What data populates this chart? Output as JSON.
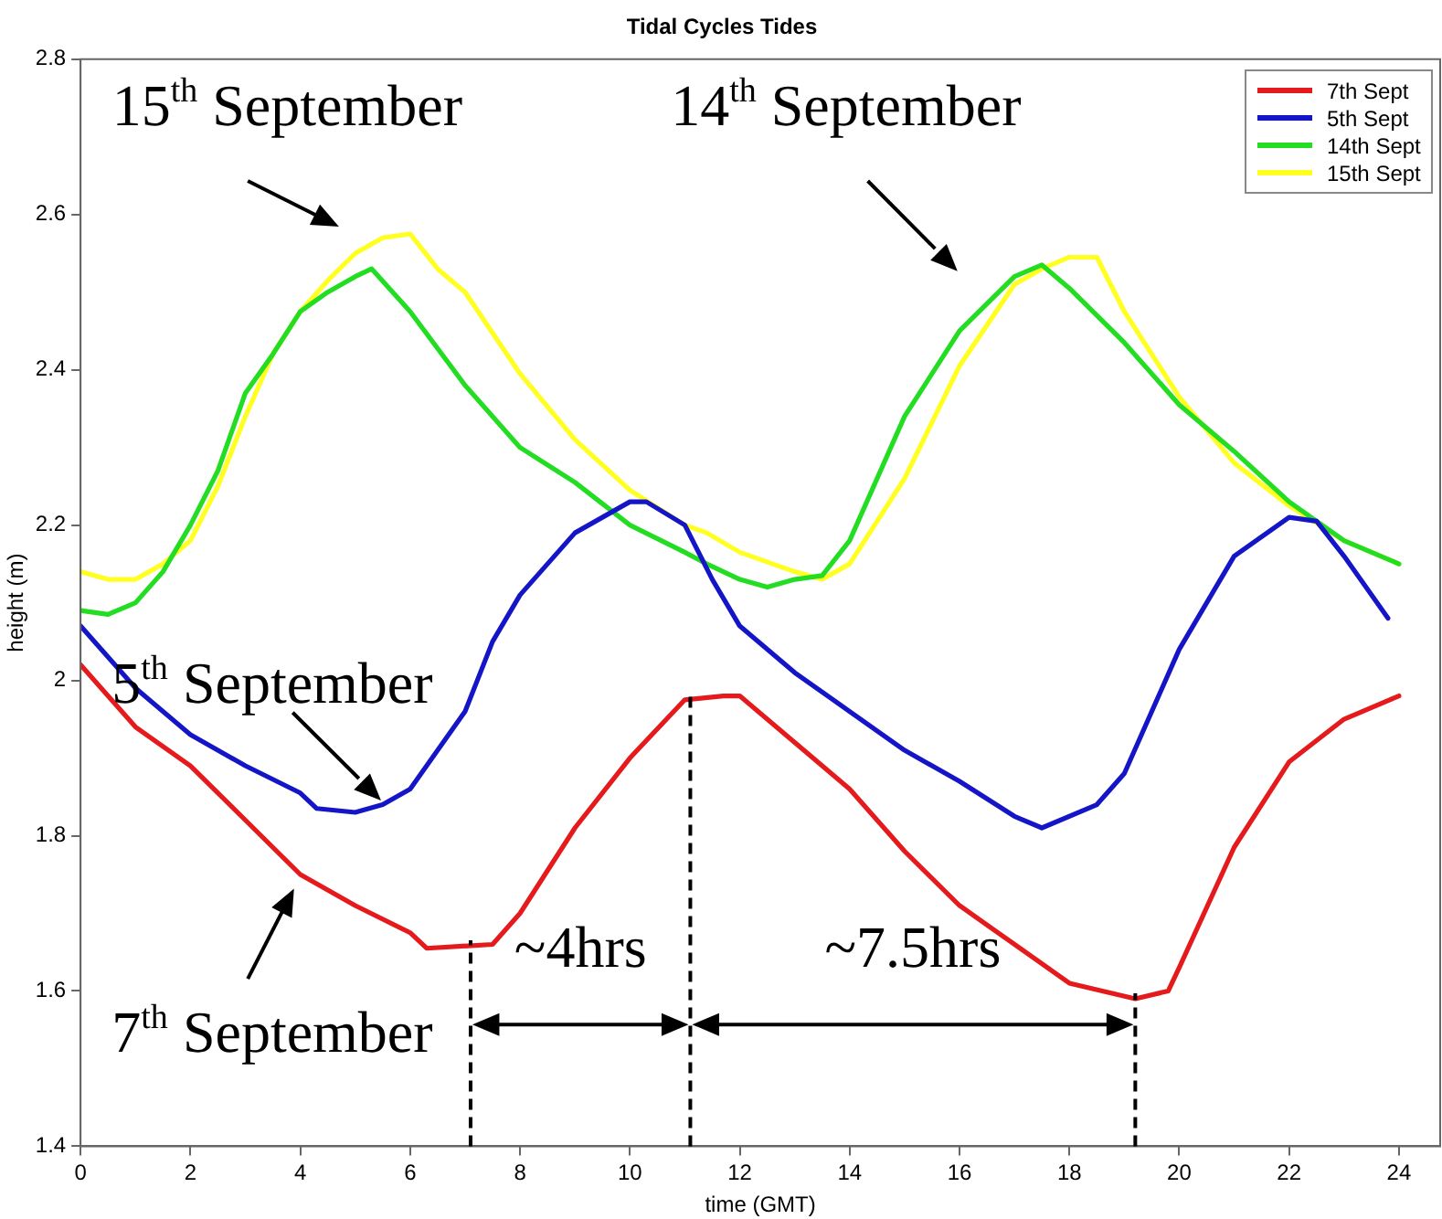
{
  "chart_data": {
    "type": "line",
    "title": "Tidal Cycles Tides",
    "xlabel": "time (GMT)",
    "ylabel": "height (m)",
    "xlim": [
      0,
      24.75
    ],
    "xticks": [
      0,
      2,
      4,
      6,
      8,
      10,
      12,
      14,
      16,
      18,
      20,
      22,
      24
    ],
    "ylim": [
      1.4,
      2.8
    ],
    "yticks": [
      1.4,
      1.6,
      1.8,
      2,
      2.2,
      2.4,
      2.6,
      2.8
    ],
    "grid": false,
    "legend": "top right",
    "line_style": "solid",
    "series": [
      {
        "name": "7th Sept",
        "color": "#e41a1c",
        "x": [
          0,
          1,
          2,
          3,
          4,
          5,
          6,
          6.3,
          7.5,
          8,
          9,
          10,
          11,
          11.7,
          12,
          13,
          14,
          15,
          16,
          17,
          18,
          19.2,
          19.8,
          20,
          21,
          22,
          23,
          24
        ],
        "values": [
          2.02,
          1.94,
          1.89,
          1.82,
          1.75,
          1.71,
          1.675,
          1.655,
          1.66,
          1.7,
          1.81,
          1.9,
          1.975,
          1.98,
          1.98,
          1.92,
          1.86,
          1.78,
          1.71,
          1.66,
          1.61,
          1.59,
          1.6,
          1.63,
          1.785,
          1.895,
          1.95,
          1.98
        ]
      },
      {
        "name": "5th Sept",
        "color": "#1515c8",
        "x": [
          0,
          1,
          2,
          3,
          4,
          4.3,
          5,
          5.5,
          6,
          7,
          7.5,
          8,
          9,
          10,
          10.3,
          11,
          11.5,
          12,
          13,
          14,
          15,
          16,
          17,
          17.5,
          18.5,
          19,
          20,
          21,
          22,
          22.5,
          23,
          23.8
        ],
        "values": [
          2.07,
          1.99,
          1.93,
          1.89,
          1.855,
          1.835,
          1.83,
          1.84,
          1.86,
          1.96,
          2.05,
          2.11,
          2.19,
          2.23,
          2.23,
          2.2,
          2.13,
          2.07,
          2.01,
          1.96,
          1.91,
          1.87,
          1.825,
          1.81,
          1.84,
          1.88,
          2.04,
          2.16,
          2.21,
          2.205,
          2.16,
          2.08
        ]
      },
      {
        "name": "14th Sept",
        "color": "#22dd22",
        "x": [
          0,
          0.5,
          1,
          1.5,
          2,
          2.5,
          3,
          3.5,
          4,
          4.5,
          5,
          5.3,
          6,
          7,
          8,
          9,
          10,
          11,
          11.4,
          12,
          12.5,
          13,
          13.5,
          14,
          15,
          16,
          17,
          17.5,
          18,
          19,
          20,
          21,
          22,
          23,
          24
        ],
        "values": [
          2.09,
          2.085,
          2.1,
          2.14,
          2.2,
          2.27,
          2.37,
          2.42,
          2.475,
          2.5,
          2.52,
          2.53,
          2.475,
          2.38,
          2.3,
          2.255,
          2.2,
          2.165,
          2.15,
          2.13,
          2.12,
          2.13,
          2.135,
          2.18,
          2.34,
          2.45,
          2.52,
          2.535,
          2.505,
          2.435,
          2.355,
          2.295,
          2.23,
          2.18,
          2.15
        ]
      },
      {
        "name": "15th Sept",
        "color": "#ffff22",
        "x": [
          0,
          0.5,
          1,
          1.5,
          2,
          2.5,
          3,
          3.5,
          4,
          4.5,
          5,
          5.5,
          6,
          6.5,
          7,
          8,
          9,
          10,
          11,
          11.4,
          12,
          13,
          13.5,
          14,
          15,
          16,
          17,
          17.5,
          18,
          18.5,
          19,
          20,
          21,
          22,
          23,
          24
        ],
        "values": [
          2.14,
          2.13,
          2.13,
          2.15,
          2.18,
          2.25,
          2.34,
          2.42,
          2.475,
          2.515,
          2.55,
          2.57,
          2.575,
          2.53,
          2.5,
          2.395,
          2.31,
          2.245,
          2.2,
          2.19,
          2.165,
          2.14,
          2.13,
          2.15,
          2.26,
          2.405,
          2.51,
          2.53,
          2.545,
          2.545,
          2.475,
          2.365,
          2.28,
          2.225,
          2.18,
          2.15
        ]
      }
    ],
    "ref_lines": [
      {
        "axis": "x",
        "value": 7.1,
        "color": "#000000",
        "line_style": "dashed"
      },
      {
        "axis": "x",
        "value": 11.1,
        "color": "#000000",
        "line_style": "dashed"
      },
      {
        "axis": "x",
        "value": 19.2,
        "color": "#000000",
        "line_style": "dashed"
      }
    ],
    "annotations": [
      "15$^{th}$ September",
      "14$^{th}$ September",
      "5$^{th}$ September",
      "7$^{th}$ September",
      "~4hrs",
      "~7.5hrs"
    ]
  }
}
